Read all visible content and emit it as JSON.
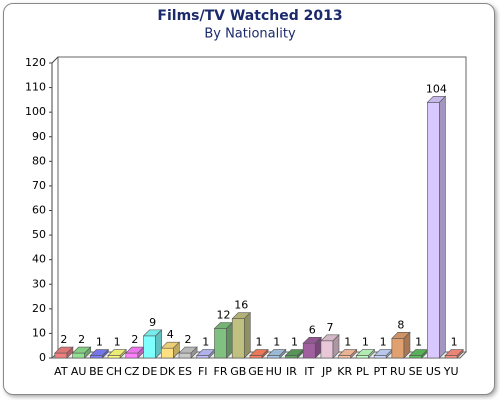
{
  "chart_data": {
    "type": "bar3d",
    "title": "Films/TV Watched 2013",
    "subtitle": "By Nationality",
    "categories": [
      "AT",
      "AU",
      "BE",
      "CH",
      "CZ",
      "DE",
      "DK",
      "ES",
      "FI",
      "FR",
      "GB",
      "GE",
      "HU",
      "IR",
      "IT",
      "JP",
      "KR",
      "PL",
      "PT",
      "RU",
      "SE",
      "US",
      "YU"
    ],
    "values": [
      2,
      2,
      1,
      1,
      2,
      9,
      4,
      2,
      1,
      12,
      16,
      1,
      1,
      1,
      6,
      7,
      1,
      1,
      1,
      8,
      1,
      104,
      1
    ],
    "colors": [
      "#f08080",
      "#90e090",
      "#8080ff",
      "#ffff80",
      "#ff80ff",
      "#80ffff",
      "#ffe080",
      "#c8c8c8",
      "#c0c0ff",
      "#80c080",
      "#c0c080",
      "#ff8060",
      "#a8c8e8",
      "#60a060",
      "#a060a0",
      "#e8c8d8",
      "#ffc0a0",
      "#c0ffc0",
      "#c8d8ff",
      "#e0a070",
      "#60c060",
      "#d8c8ff",
      "#ff9080"
    ],
    "ylim": [
      0,
      120
    ],
    "yticks": [
      0,
      10,
      20,
      30,
      40,
      50,
      60,
      70,
      80,
      90,
      100,
      110,
      120
    ]
  }
}
